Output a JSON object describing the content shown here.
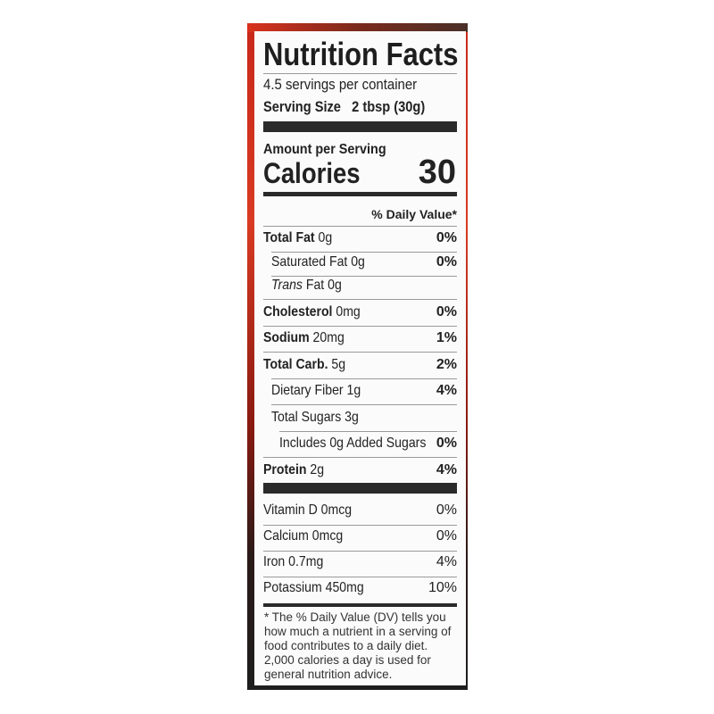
{
  "title": "Nutrition Facts",
  "servings_per_container": "4.5 servings per container",
  "serving_size_label": "Serving Size",
  "serving_size_value": "2 tbsp (30g)",
  "amount_per_serving": "Amount per Serving",
  "calories_label": "Calories",
  "calories_value": "30",
  "daily_value_header": "% Daily Value*",
  "nutrients": [
    {
      "label": "Total Fat",
      "amount": "0g",
      "dv": "0%"
    },
    {
      "label": "Saturated Fat 0g",
      "dv": "0%"
    },
    {
      "label": "Trans",
      "suffix": "Fat 0g",
      "dv": ""
    },
    {
      "label": "Cholesterol",
      "amount": "0mg",
      "dv": "0%"
    },
    {
      "label": "Sodium",
      "amount": "20mg",
      "dv": "1%"
    },
    {
      "label": "Total Carb.",
      "amount": "5g",
      "dv": "2%"
    },
    {
      "label": "Dietary Fiber 1g",
      "dv": "4%"
    },
    {
      "label": "Total Sugars 3g",
      "dv": ""
    },
    {
      "label": "Includes 0g Added Sugars",
      "dv": "0%"
    },
    {
      "label": "Protein",
      "amount": "2g",
      "dv": "4%"
    }
  ],
  "vitamins": [
    {
      "label": "Vitamin D 0mcg",
      "dv": "0%"
    },
    {
      "label": "Calcium 0mcg",
      "dv": "0%"
    },
    {
      "label": "Iron 0.7mg",
      "dv": "4%"
    },
    {
      "label": "Potassium 450mg",
      "dv": "10%"
    }
  ],
  "footnote": "* The % Daily Value (DV) tells you how much a nutrient in a serving of food contributes to a daily diet. 2,000 calories a day is used for general nutrition advice.",
  "colors": {
    "package_red": "#d83a22",
    "ink": "#222222"
  }
}
